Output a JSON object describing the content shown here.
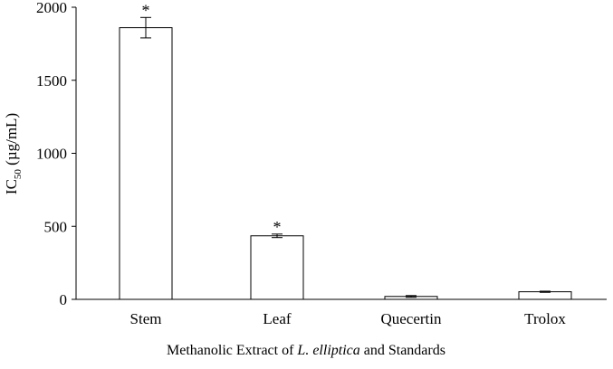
{
  "chart_data": {
    "type": "bar",
    "categories": [
      "Stem",
      "Leaf",
      "Quecertin",
      "Trolox"
    ],
    "values": [
      1860,
      435,
      20,
      52
    ],
    "errors": [
      70,
      12,
      6,
      4
    ],
    "annotations": [
      "*",
      "*",
      "",
      ""
    ],
    "ylim": [
      0,
      2000
    ],
    "yticks": [
      0,
      500,
      1000,
      1500,
      2000
    ],
    "ylabel": {
      "main": "IC",
      "subscript": "50",
      "suffix": " (µg/mL)"
    },
    "xlabel": {
      "before": "Methanolic Extract of ",
      "italic": "L. elliptica",
      "after": " and Standards"
    },
    "grid": false,
    "bar_fill": "#ffffff",
    "bar_stroke": "#000000"
  }
}
